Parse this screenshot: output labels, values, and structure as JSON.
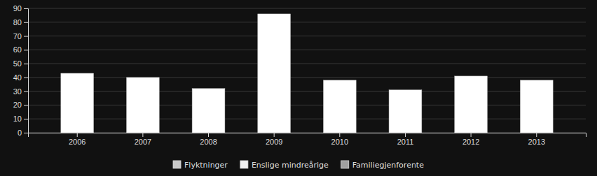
{
  "chart_data": {
    "type": "bar",
    "categories": [
      "2006",
      "2007",
      "2008",
      "2009",
      "2010",
      "2011",
      "2012",
      "2013"
    ],
    "values": [
      43,
      40,
      32,
      86,
      38,
      31,
      41,
      38
    ],
    "color": "#ffffff",
    "ylim": [
      0,
      90
    ],
    "yticks": [
      0,
      10,
      20,
      30,
      40,
      50,
      60,
      70,
      80,
      90
    ],
    "grid": true,
    "legend": "bottom",
    "legend_labels": [
      "Flyktninger",
      "Enslige mindreårige",
      "Familiegjenforente"
    ],
    "legend_colors": [
      "#c8c8c8",
      "#f0f0f0",
      "#a0a0a0"
    ]
  }
}
